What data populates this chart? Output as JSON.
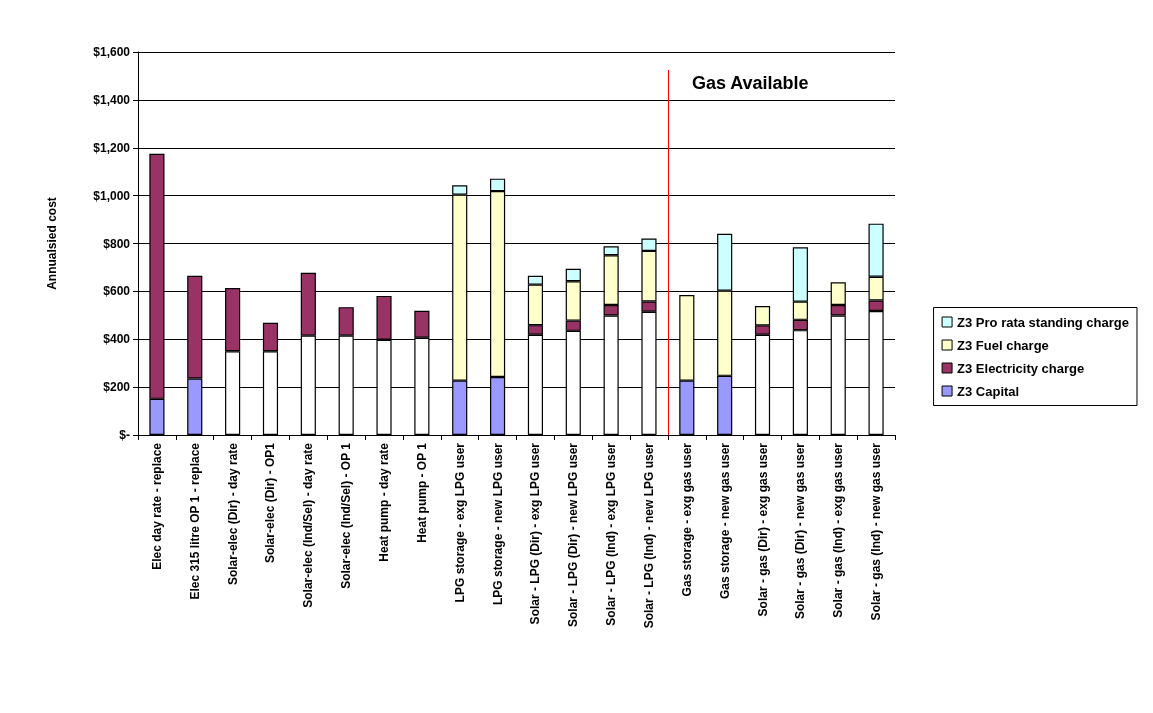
{
  "chart_data": {
    "type": "bar",
    "stacked": true,
    "ylabel": "Annualsied cost",
    "legend": "right",
    "grid": "y",
    "categories": [
      "Elec day rate - replace",
      "Elec 315 litre OP 1 - replace",
      "Solar-elec (Dir) - day rate",
      "Solar-elec (Dir) - OP1",
      "Solar-elec (Ind/Sel) - day rate",
      "Solar-elec (Ind/Sel) - OP 1",
      "Heat pump - day rate",
      "Heat pump - OP 1",
      "LPG storage - exg LPG user",
      "LPG storage - new LPG user",
      "Solar - LPG (Dir) - exg LPG user",
      "Solar - LPG (Dir) - new LPG user",
      "Solar - LPG (Ind) - exg LPG user",
      "Solar - LPG (Ind) - new LPG user",
      "Gas storage - exg gas user",
      "Gas storage - new gas user",
      "Solar - gas (Dir) - exg gas user",
      "Solar - gas (Dir) - new gas user",
      "Solar - gas (Ind) - exg gas user",
      "Solar - gas (Ind) - new gas user"
    ],
    "series": [
      {
        "name": "Z3 Capital",
        "color": "#9999ff",
        "colors": [
          "#9999ff",
          "#9999ff",
          "#ffffff",
          "#ffffff",
          "#ffffff",
          "#ffffff",
          "#ffffff",
          "#ffffff",
          "#9999ff",
          "#9999ff",
          "#ffffff",
          "#ffffff",
          "#ffffff",
          "#ffffff",
          "#9999ff",
          "#9999ff",
          "#ffffff",
          "#ffffff",
          "#ffffff",
          "#ffffff"
        ],
        "values": [
          151,
          236,
          350,
          350,
          415,
          415,
          398,
          406,
          227,
          242,
          419,
          435,
          499,
          515,
          227,
          247,
          419,
          438,
          499,
          518
        ]
      },
      {
        "name": "Z3 Electricity charge",
        "color": "#993366",
        "values": [
          1024,
          429,
          264,
          119,
          263,
          119,
          183,
          113,
          null,
          null,
          40,
          43,
          44,
          43,
          null,
          null,
          39,
          43,
          44,
          44
        ]
      },
      {
        "name": "Z3 Fuel charge",
        "color": "#ffffcc",
        "values": [
          null,
          null,
          null,
          null,
          null,
          null,
          null,
          null,
          777,
          777,
          169,
          164,
          208,
          211,
          358,
          356,
          81,
          76,
          95,
          99
        ]
      },
      {
        "name": "Z3 Pro rata standing charge",
        "color": "#ccffff",
        "values": [
          null,
          null,
          null,
          null,
          null,
          null,
          null,
          null,
          39,
          52,
          37,
          52,
          37,
          52,
          null,
          238,
          null,
          227,
          null,
          222
        ]
      }
    ],
    "ylim": [
      0,
      1600
    ],
    "yticks": [
      {
        "value": 0,
        "label": "$-"
      },
      {
        "value": 200,
        "label": "$200"
      },
      {
        "value": 400,
        "label": "$400"
      },
      {
        "value": 600,
        "label": "$600"
      },
      {
        "value": 800,
        "label": "$800"
      },
      {
        "value": 1000,
        "label": "$1,000"
      },
      {
        "value": 1200,
        "label": "$1,200"
      },
      {
        "value": 1400,
        "label": "$1,400"
      },
      {
        "value": 1600,
        "label": "$1,600"
      }
    ],
    "ref_lines": [
      {
        "axis": "x",
        "value": "Gas storage - exg gas user",
        "label": "Gas Available",
        "color": "#ff0000"
      }
    ]
  }
}
